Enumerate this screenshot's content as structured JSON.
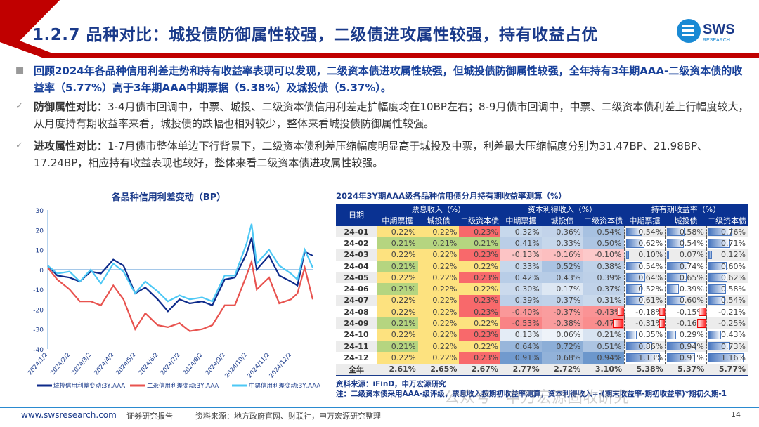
{
  "header": {
    "title": "1.2.7 品种对比：城投债防御属性较强，二级债进攻属性较强，持有收益占优",
    "logo_text": "SWS",
    "logo_sub": "RESEARCH"
  },
  "bullets": [
    {
      "marker": "■",
      "text": "回顾2024年各品种信用利差走势和持有收益率表现可以发现，二级资本债进攻属性较强，但城投债防御属性较强，全年持有3年期AAA-二级资本债的收益率（5.77%）高于3年期AAA中期票据（5.38%）及城投债（5.37%）。"
    },
    {
      "marker": "✓",
      "label": "防御属性对比：",
      "text": "3-4月债市回调中，中票、城投、二级资本债信用利差走扩幅度均在10BP左右；8-9月债市回调中，中票、二级资本债利差上行幅度较大，从月度持有期收益率来看，城投债的跌幅也相对较少，整体来看城投债防御属性较强。"
    },
    {
      "marker": "✓",
      "label": "进攻属性对比：",
      "text": "1-7月债市整体单边下行背景下，二级资本债利差压缩幅度明显高于城投及中票，利差最大压缩幅度分别为31.47BP、21.98BP、17.24BP，相应持有收益表现也较好，整体来看二级资本债进攻属性较强。"
    }
  ],
  "chart_data": {
    "type": "line",
    "title": "各品种信用利差变动（BP）",
    "ylim": [
      -40,
      30
    ],
    "yticks": [
      30,
      20,
      10,
      0,
      -10,
      -20,
      -30,
      -40
    ],
    "xticks": [
      "2024/1/2",
      "2024/2/2",
      "2024/3/2",
      "2024/4/2",
      "2024/5/2",
      "2024/6/2",
      "2024/7/2",
      "2024/8/2",
      "2024/9/2",
      "2024/10/2",
      "2024/11/2",
      "2024/12/2"
    ],
    "x": [
      "2024-01-02",
      "2024-01-15",
      "2024-02-01",
      "2024-02-15",
      "2024-03-01",
      "2024-03-15",
      "2024-04-01",
      "2024-04-15",
      "2024-05-01",
      "2024-05-15",
      "2024-06-01",
      "2024-06-15",
      "2024-07-01",
      "2024-07-15",
      "2024-08-01",
      "2024-08-15",
      "2024-09-01",
      "2024-09-15",
      "2024-10-01",
      "2024-10-08",
      "2024-10-15",
      "2024-11-01",
      "2024-11-15",
      "2024-12-01",
      "2024-12-10",
      "2024-12-20",
      "2024-12-31"
    ],
    "series": [
      {
        "name": "城投信用利差变动:3Y,AAA",
        "color": "#0d2a8a",
        "values": [
          2,
          -3,
          -4,
          -6,
          -1,
          -2,
          5,
          2,
          -12,
          -9,
          -15,
          -21,
          -15,
          -17,
          -16,
          -18,
          -5,
          -4,
          8,
          16,
          0,
          7,
          -3,
          -6,
          -8,
          9,
          7
        ]
      },
      {
        "name": "二永信用利差变动:3Y,AAA",
        "color": "#e8534f",
        "values": [
          1,
          -5,
          -10,
          -16,
          -16,
          -18,
          -8,
          -15,
          -30,
          -22,
          -28,
          -29,
          -27,
          -31,
          -30,
          -28,
          -18,
          -18,
          -3,
          4,
          -10,
          -4,
          -17,
          -15,
          -12,
          1,
          -15
        ]
      },
      {
        "name": "中票信用利差变动:3Y,AAA",
        "color": "#4dc8f5",
        "values": [
          2,
          -2,
          -1,
          -6,
          0,
          -7,
          3,
          -1,
          -12,
          -6,
          -11,
          -16,
          -13,
          -15,
          -14,
          -16,
          -3,
          -3,
          13,
          23,
          3,
          10,
          2,
          -2,
          -5,
          10,
          1
        ]
      }
    ],
    "legend": "bottom"
  },
  "table": {
    "title": "2024年3Y期AAA级各品种信用债分月持有期收益率测算（%）",
    "date_header": "日期",
    "groups": [
      "票息收入（%）",
      "资本利得收入（%）",
      "持有期收益率（%）"
    ],
    "subheaders": [
      "中期票据",
      "城投债",
      "二级资本债",
      "中期票据",
      "城投债",
      "二级资本债",
      "中期票据",
      "城投债",
      "二级资本债"
    ],
    "rows": [
      {
        "date": "24-01",
        "v": [
          "0.22%",
          "0.22%",
          "0.23%",
          "0.32%",
          "0.36%",
          "0.54%",
          "0.54%",
          "0.58%",
          "0.76%"
        ]
      },
      {
        "date": "24-02",
        "v": [
          "0.21%",
          "0.21%",
          "0.21%",
          "0.41%",
          "0.33%",
          "0.50%",
          "0.62%",
          "0.54%",
          "0.71%"
        ]
      },
      {
        "date": "24-03",
        "v": [
          "0.22%",
          "0.22%",
          "0.23%",
          "-0.13%",
          "-0.16%",
          "-0.10%",
          "0.10%",
          "0.07%",
          "0.12%"
        ]
      },
      {
        "date": "24-04",
        "v": [
          "0.21%",
          "0.22%",
          "0.22%",
          "0.33%",
          "0.52%",
          "0.38%",
          "0.54%",
          "0.74%",
          "0.60%"
        ]
      },
      {
        "date": "24-05",
        "v": [
          "0.22%",
          "0.22%",
          "0.23%",
          "0.42%",
          "0.43%",
          "0.39%",
          "0.64%",
          "0.65%",
          "0.62%"
        ]
      },
      {
        "date": "24-06",
        "v": [
          "0.21%",
          "0.22%",
          "0.22%",
          "0.30%",
          "0.17%",
          "0.37%",
          "0.52%",
          "0.39%",
          "0.58%"
        ]
      },
      {
        "date": "24-07",
        "v": [
          "0.22%",
          "0.22%",
          "0.23%",
          "0.39%",
          "0.37%",
          "0.31%",
          "0.61%",
          "0.60%",
          "0.54%"
        ]
      },
      {
        "date": "24-08",
        "v": [
          "0.22%",
          "0.22%",
          "0.23%",
          "-0.40%",
          "-0.37%",
          "-0.43%",
          "-0.18%",
          "-0.15%",
          "-0.21%"
        ]
      },
      {
        "date": "24-09",
        "v": [
          "0.21%",
          "0.22%",
          "0.22%",
          "-0.53%",
          "-0.38%",
          "-0.47%",
          "-0.31%",
          "-0.16%",
          "-0.25%"
        ]
      },
      {
        "date": "24-10",
        "v": [
          "0.22%",
          "0.22%",
          "0.23%",
          "0.13%",
          "0.06%",
          "0.21%",
          "0.35%",
          "0.29%",
          "0.43%"
        ]
      },
      {
        "date": "24-11",
        "v": [
          "0.21%",
          "0.22%",
          "0.22%",
          "0.64%",
          "0.72%",
          "0.51%",
          "0.86%",
          "0.94%",
          "0.73%"
        ]
      },
      {
        "date": "24-12",
        "v": [
          "0.22%",
          "0.22%",
          "0.23%",
          "0.91%",
          "0.68%",
          "0.94%",
          "1.13%",
          "0.91%",
          "1.16%"
        ]
      }
    ],
    "total": {
      "date": "全年",
      "v": [
        "2.61%",
        "2.65%",
        "2.67%",
        "2.77%",
        "2.72%",
        "3.10%",
        "5.38%",
        "5.37%",
        "5.77%"
      ]
    },
    "source": "资料来源：iFinD，申万宏源研究",
    "note": "注：二级资本债采用AAA-级评级，票息收入按期初收益率测算，资本利得收入=-(期末收益率-期初收益率)*期初久期-1"
  },
  "watermark": "公众号 · 申万宏源固收研究",
  "footer": {
    "url": "www.swsresearch.com",
    "type": "证券研究报告",
    "source": "资料来源：地方政府官网、财联社，申万宏源研究整理",
    "page": "14"
  }
}
